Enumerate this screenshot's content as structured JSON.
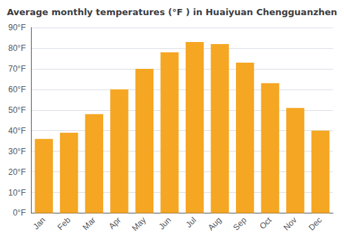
{
  "chart_data": {
    "type": "bar",
    "title": "Average monthly temperatures (°F ) in Huaiyuan Chengguanzhen",
    "categories": [
      "Jan",
      "Feb",
      "Mar",
      "Apr",
      "May",
      "Jun",
      "Jul",
      "Aug",
      "Sep",
      "Oct",
      "Nov",
      "Dec"
    ],
    "values": [
      36,
      39,
      48,
      60,
      70,
      78,
      83,
      82,
      73,
      63,
      51,
      40
    ],
    "color": "#F5A623",
    "ylim": [
      0,
      90
    ],
    "yticks": [
      {
        "value": 0,
        "label": "0°F"
      },
      {
        "value": 10,
        "label": "10°F"
      },
      {
        "value": 20,
        "label": "20°F"
      },
      {
        "value": 30,
        "label": "30°F"
      },
      {
        "value": 40,
        "label": "40°F"
      },
      {
        "value": 50,
        "label": "50°F"
      },
      {
        "value": 60,
        "label": "60°F"
      },
      {
        "value": 70,
        "label": "70°F"
      },
      {
        "value": 80,
        "label": "80°F"
      },
      {
        "value": 90,
        "label": "90°F"
      }
    ],
    "grid": true
  }
}
